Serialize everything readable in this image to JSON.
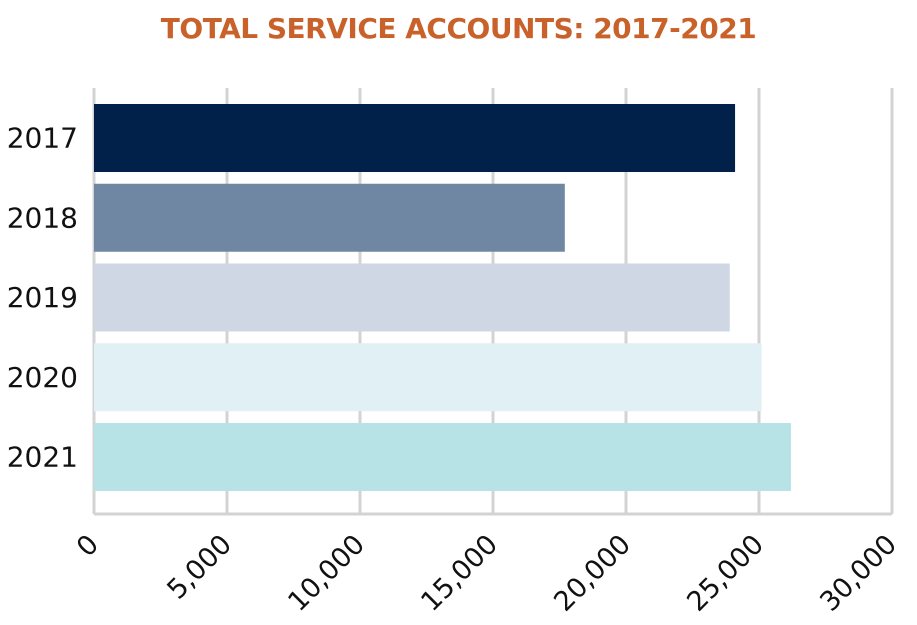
{
  "chart_data": {
    "type": "bar",
    "orientation": "horizontal",
    "title": "TOTAL SERVICE ACCOUNTS: 2017-2021",
    "xlabel": "",
    "ylabel": "",
    "categories": [
      "2017",
      "2018",
      "2019",
      "2020",
      "2021"
    ],
    "values": [
      24100,
      17700,
      23900,
      25100,
      26200
    ],
    "xlim": [
      0,
      30000
    ],
    "x_ticks": [
      0,
      5000,
      10000,
      15000,
      20000,
      25000,
      30000
    ],
    "x_tick_labels": [
      "0",
      "5,000",
      "10,000",
      "15,000",
      "20,000",
      "25,000",
      "30,000"
    ],
    "grid": "vertical",
    "legend": "none",
    "bar_colors": [
      "#01204a",
      "#7087a4",
      "#d0d7e4",
      "#e0f0f4",
      "#b7e2e6"
    ],
    "title_color": "#c9622a",
    "grid_color": "#d3d3d3"
  }
}
